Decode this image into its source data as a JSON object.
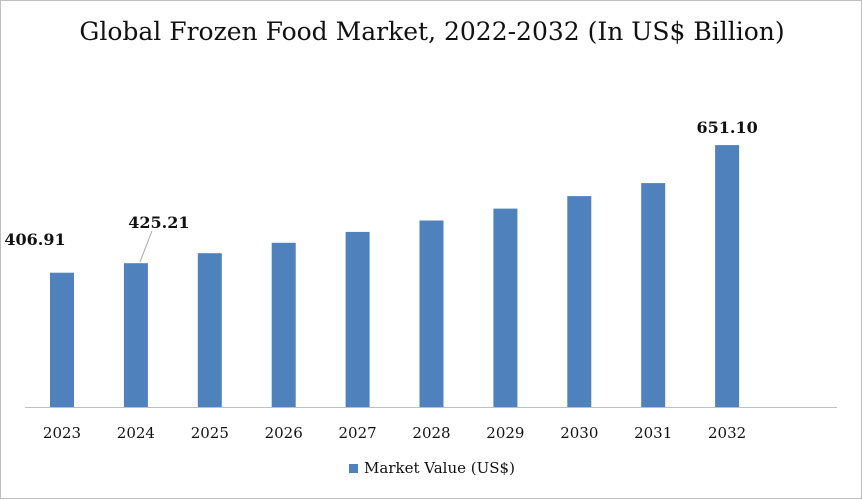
{
  "chart_data": {
    "type": "bar",
    "title": "Global Frozen Food Market, 2022-2032 (In US$ Billion)",
    "categories": [
      "2023",
      "2024",
      "2025",
      "2026",
      "2027",
      "2028",
      "2029",
      "2030",
      "2031",
      "2032"
    ],
    "series": [
      {
        "name": "Market Value (US$)",
        "values": [
          406.91,
          425.21,
          444.3,
          464.2,
          485.1,
          506.9,
          529.7,
          553.6,
          578.4,
          651.1
        ],
        "data_labels": [
          "406.91",
          "425.21",
          "",
          "",
          "",
          "",
          "",
          "",
          "",
          "651.10"
        ]
      }
    ],
    "ylim": [
      150,
      680
    ],
    "xlabel": "",
    "ylabel": "",
    "grid": false,
    "legend_position": "bottom",
    "colors": {
      "bar": "#4f81bd",
      "axis": "#bfbfbf",
      "frame": "#bfbfbf"
    }
  }
}
